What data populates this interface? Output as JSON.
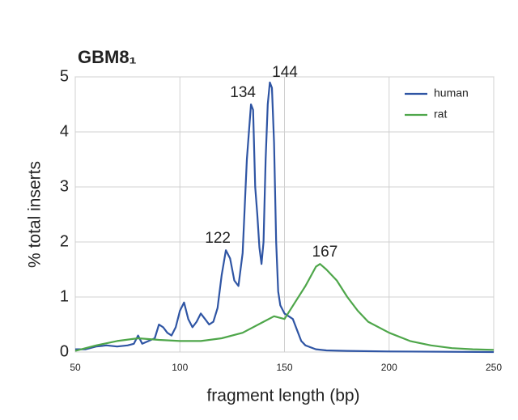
{
  "chart_data": {
    "type": "line",
    "title": "GBM8₁",
    "xlabel": "fragment length (bp)",
    "ylabel": "% total inserts",
    "xlim": [
      50,
      250
    ],
    "xticks": [
      50,
      100,
      150,
      200,
      250
    ],
    "ylim": [
      0,
      5
    ],
    "yticks": [
      0,
      1,
      2,
      3,
      4,
      5
    ],
    "grid": true,
    "legend": "upper-right",
    "series": [
      {
        "name": "human",
        "color": "#2f55a4",
        "x": [
          50,
          55,
          60,
          65,
          70,
          75,
          78,
          80,
          82,
          85,
          88,
          90,
          92,
          94,
          96,
          98,
          100,
          102,
          104,
          106,
          108,
          110,
          112,
          114,
          116,
          118,
          120,
          122,
          124,
          126,
          128,
          130,
          132,
          134,
          135,
          136,
          137,
          138,
          139,
          140,
          141,
          142,
          143,
          144,
          145,
          146,
          147,
          148,
          150,
          152,
          154,
          156,
          158,
          160,
          165,
          170,
          180,
          200,
          250
        ],
        "values": [
          0.05,
          0.05,
          0.1,
          0.12,
          0.1,
          0.12,
          0.15,
          0.3,
          0.15,
          0.2,
          0.25,
          0.5,
          0.45,
          0.35,
          0.3,
          0.45,
          0.75,
          0.9,
          0.6,
          0.45,
          0.55,
          0.7,
          0.6,
          0.5,
          0.55,
          0.8,
          1.4,
          1.85,
          1.7,
          1.3,
          1.2,
          1.8,
          3.5,
          4.5,
          4.4,
          3.0,
          2.5,
          1.9,
          1.6,
          2.0,
          3.5,
          4.5,
          4.9,
          4.8,
          3.8,
          2.0,
          1.1,
          0.85,
          0.7,
          0.65,
          0.6,
          0.4,
          0.2,
          0.12,
          0.05,
          0.03,
          0.02,
          0.01,
          0
        ]
      },
      {
        "name": "rat",
        "color": "#4ea64a",
        "x": [
          50,
          60,
          70,
          80,
          90,
          100,
          110,
          120,
          130,
          140,
          145,
          150,
          155,
          160,
          165,
          167,
          170,
          175,
          180,
          185,
          190,
          200,
          210,
          220,
          230,
          240,
          250
        ],
        "values": [
          0.02,
          0.12,
          0.2,
          0.25,
          0.22,
          0.2,
          0.2,
          0.25,
          0.35,
          0.55,
          0.65,
          0.6,
          0.9,
          1.2,
          1.55,
          1.6,
          1.5,
          1.3,
          1.0,
          0.75,
          0.55,
          0.35,
          0.2,
          0.12,
          0.07,
          0.05,
          0.04
        ]
      }
    ],
    "annotations": [
      {
        "text": "134",
        "x": 134
      },
      {
        "text": "144",
        "x": 144
      },
      {
        "text": "122",
        "x": 122
      },
      {
        "text": "167",
        "x": 167
      }
    ]
  }
}
